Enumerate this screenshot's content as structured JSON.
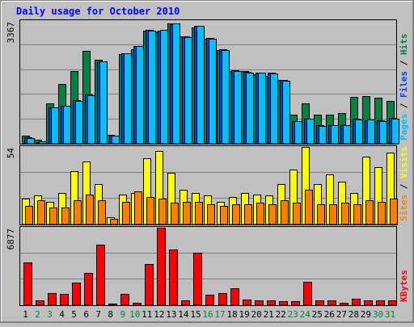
{
  "chart_data": [
    {
      "type": "bar",
      "title": "Daily usage for October 2010",
      "ymax_label": "3367",
      "legend": [
        {
          "name": "Pages",
          "color": "#00c0ff"
        },
        {
          "name": "Files",
          "color": "#0040ff"
        },
        {
          "name": "Hits",
          "color": "#008040"
        }
      ],
      "legend_separator": " / ",
      "ylim": [
        0,
        3367
      ],
      "categories": [
        "1",
        "2",
        "3",
        "4",
        "5",
        "6",
        "7",
        "8",
        "9",
        "10",
        "11",
        "12",
        "13",
        "14",
        "15",
        "16",
        "17",
        "18",
        "19",
        "20",
        "21",
        "22",
        "23",
        "24",
        "25",
        "26",
        "27",
        "28",
        "29",
        "30",
        "31"
      ],
      "weekend_days": [
        "2",
        "3",
        "9",
        "10",
        "16",
        "17",
        "23",
        "24",
        "30",
        "31"
      ],
      "series": [
        {
          "name": "Hits",
          "values": [
            230,
            100,
            1100,
            1650,
            2000,
            2550,
            2300,
            250,
            2450,
            2600,
            3100,
            3080,
            3300,
            2950,
            3200,
            2870,
            2580,
            2000,
            2000,
            1900,
            1850,
            1750,
            800,
            1100,
            800,
            800,
            850,
            1280,
            1300,
            1260,
            1180
          ]
        },
        {
          "name": "Files",
          "values": [
            170,
            50,
            1000,
            1050,
            1200,
            1350,
            2230,
            230,
            2470,
            2680,
            3130,
            3100,
            3270,
            2950,
            3240,
            2900,
            2600,
            2020,
            1970,
            1960,
            1960,
            1750,
            630,
            680,
            500,
            500,
            510,
            680,
            650,
            640,
            700
          ]
        },
        {
          "name": "Pages",
          "values": [
            150,
            70,
            990,
            1050,
            1180,
            1330,
            2250,
            230,
            2470,
            2680,
            3100,
            3120,
            3290,
            2930,
            3240,
            2870,
            2580,
            2000,
            1950,
            1960,
            1930,
            1720,
            620,
            680,
            490,
            510,
            520,
            670,
            660,
            630,
            690
          ]
        }
      ]
    },
    {
      "type": "bar",
      "ymax_label": "54",
      "legend": [
        {
          "name": "Sites",
          "color": "#ff8000"
        },
        {
          "name": "Visits",
          "color": "#ffff00"
        }
      ],
      "legend_separator": " / ",
      "ylim": [
        0,
        54
      ],
      "categories": [
        "1",
        "2",
        "3",
        "4",
        "5",
        "6",
        "7",
        "8",
        "9",
        "10",
        "11",
        "12",
        "13",
        "14",
        "15",
        "16",
        "17",
        "18",
        "19",
        "20",
        "21",
        "22",
        "23",
        "24",
        "25",
        "26",
        "27",
        "28",
        "29",
        "30",
        "31"
      ],
      "series": [
        {
          "name": "Visits",
          "values": [
            18,
            20,
            16,
            22,
            37,
            44,
            28,
            5,
            21,
            22,
            46,
            51,
            36,
            24,
            22,
            20,
            16,
            19,
            22,
            21,
            20,
            28,
            38,
            54,
            28,
            35,
            30,
            22,
            47,
            40,
            50
          ]
        },
        {
          "name": "Sites",
          "values": [
            13,
            17,
            12,
            12,
            17,
            21,
            17,
            4,
            16,
            23,
            19,
            18,
            15,
            16,
            16,
            14,
            13,
            14,
            14,
            15,
            14,
            17,
            15,
            24,
            14,
            14,
            15,
            14,
            17,
            16,
            18
          ]
        }
      ]
    },
    {
      "type": "bar",
      "ymax_label": "6877",
      "legend": [
        {
          "name": "KBytes",
          "color": "#ff0000"
        }
      ],
      "ylim": [
        0,
        6877
      ],
      "categories": [
        "1",
        "2",
        "3",
        "4",
        "5",
        "6",
        "7",
        "8",
        "9",
        "10",
        "11",
        "12",
        "13",
        "14",
        "15",
        "16",
        "17",
        "18",
        "19",
        "20",
        "21",
        "22",
        "23",
        "24",
        "25",
        "26",
        "27",
        "28",
        "29",
        "30",
        "31"
      ],
      "series": [
        {
          "name": "KBytes",
          "values": [
            3800,
            400,
            1100,
            1000,
            2000,
            2900,
            5400,
            150,
            1000,
            250,
            3650,
            6877,
            4950,
            400,
            4650,
            900,
            1100,
            1500,
            500,
            400,
            400,
            350,
            350,
            2050,
            450,
            400,
            200,
            600,
            450,
            450,
            450
          ]
        }
      ]
    }
  ]
}
